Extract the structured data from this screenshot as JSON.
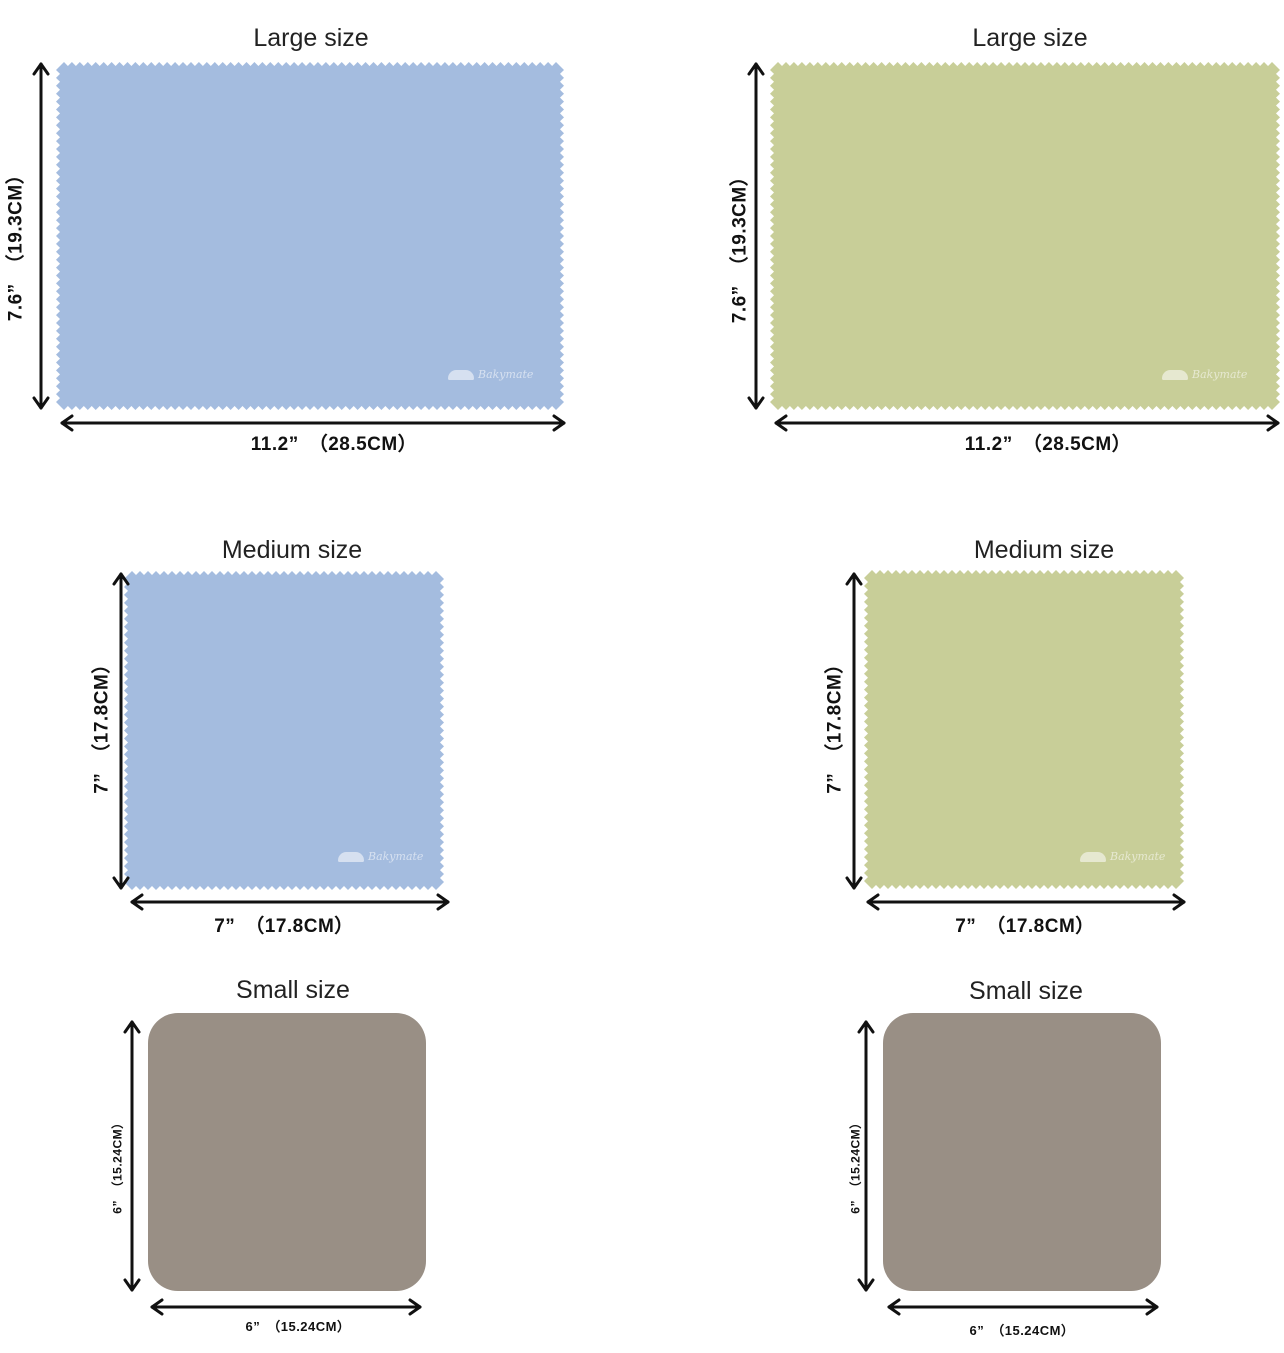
{
  "colors": {
    "blue": "#a4bcdf",
    "green": "#c8ce98",
    "gray": "#998f85",
    "arrow": "#111111"
  },
  "panels": [
    {
      "id": "large-blue",
      "title": "Large size",
      "width_label": "11.2”　（28.5CM）",
      "height_label": "7.6”　（19.3CM）",
      "color": "blue",
      "shape": "pinked",
      "watermark": "Bakymate"
    },
    {
      "id": "large-green",
      "title": "Large size",
      "width_label": "11.2”　（28.5CM）",
      "height_label": "7.6”　（19.3CM）",
      "color": "green",
      "shape": "pinked",
      "watermark": "Bakymate"
    },
    {
      "id": "medium-blue",
      "title": "Medium size",
      "width_label": "7”　（17.8CM）",
      "height_label": "7”　（17.8CM）",
      "color": "blue",
      "shape": "pinked",
      "watermark": "Bakymate"
    },
    {
      "id": "medium-green",
      "title": "Medium size",
      "width_label": "7”　（17.8CM）",
      "height_label": "7”　（17.8CM）",
      "color": "green",
      "shape": "pinked",
      "watermark": "Bakymate"
    },
    {
      "id": "small-left",
      "title": "Small size",
      "width_label": "6”　（15.24CM）",
      "height_label": "6”　（15.24CM）",
      "color": "gray",
      "shape": "rounded"
    },
    {
      "id": "small-right",
      "title": "Small size",
      "width_label": "6”　（15.24CM）",
      "height_label": "6”　（15.24CM）",
      "color": "gray",
      "shape": "rounded"
    }
  ]
}
